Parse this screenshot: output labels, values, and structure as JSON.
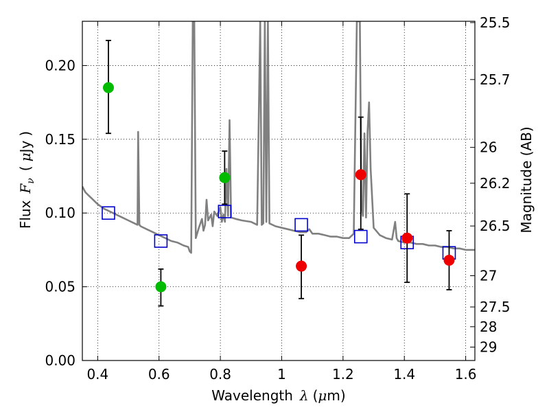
{
  "chart_data": {
    "type": "scatter",
    "xlabel": "Wavelength  λ (μm)",
    "ylabel": "Flux  F_ν  ( μJy )",
    "ylabel_parts": {
      "prefix": "Flux",
      "symbol": "F",
      "subscript": "ν",
      "unit_open": "(",
      "unit_mu": "μ",
      "unit": "Jy",
      "unit_close": ")"
    },
    "xlabel_parts": {
      "prefix": "Wavelength",
      "symbol": "λ",
      "unit_open": "(",
      "unit_mu": "μ",
      "unit": "m)"
    },
    "ylabel_right": "Magnitude (AB)",
    "xlim": [
      0.35,
      1.63
    ],
    "ylim": [
      0.0,
      0.23
    ],
    "grid": true,
    "x_ticks": [
      {
        "value": 0.4,
        "label": "0.4"
      },
      {
        "value": 0.6,
        "label": "0.6"
      },
      {
        "value": 0.8,
        "label": "0.8"
      },
      {
        "value": 1.0,
        "label": "1"
      },
      {
        "value": 1.2,
        "label": "1.2"
      },
      {
        "value": 1.4,
        "label": "1.4"
      },
      {
        "value": 1.6,
        "label": "1.6"
      }
    ],
    "y_ticks": [
      {
        "value": 0.0,
        "label": "0.00"
      },
      {
        "value": 0.05,
        "label": "0.05"
      },
      {
        "value": 0.1,
        "label": "0.10"
      },
      {
        "value": 0.15,
        "label": "0.15"
      },
      {
        "value": 0.2,
        "label": "0.20"
      }
    ],
    "right_ticks": [
      {
        "flux": 0.2291,
        "label": "25.5"
      },
      {
        "flux": 0.1905,
        "label": "25.7"
      },
      {
        "flux": 0.1445,
        "label": "26"
      },
      {
        "flux": 0.1202,
        "label": "26.2"
      },
      {
        "flux": 0.0912,
        "label": "26.5"
      },
      {
        "flux": 0.0575,
        "label": "27"
      },
      {
        "flux": 0.0363,
        "label": "27.5"
      },
      {
        "flux": 0.0229,
        "label": "28"
      },
      {
        "flux": 0.0091,
        "label": "29"
      }
    ],
    "series": [
      {
        "kind": "line",
        "color": "#808080",
        "points": [
          [
            0.35,
            0.118
          ],
          [
            0.36,
            0.114
          ],
          [
            0.37,
            0.112
          ],
          [
            0.38,
            0.11
          ],
          [
            0.4,
            0.106
          ],
          [
            0.42,
            0.103
          ],
          [
            0.44,
            0.101
          ],
          [
            0.46,
            0.099
          ],
          [
            0.48,
            0.097
          ],
          [
            0.5,
            0.095
          ],
          [
            0.52,
            0.093
          ],
          [
            0.53,
            0.092
          ],
          [
            0.532,
            0.155
          ],
          [
            0.536,
            0.092
          ],
          [
            0.54,
            0.091
          ],
          [
            0.56,
            0.089
          ],
          [
            0.58,
            0.087
          ],
          [
            0.6,
            0.085
          ],
          [
            0.62,
            0.083
          ],
          [
            0.64,
            0.081
          ],
          [
            0.66,
            0.08
          ],
          [
            0.68,
            0.078
          ],
          [
            0.695,
            0.077
          ],
          [
            0.7,
            0.074
          ],
          [
            0.705,
            0.073
          ],
          [
            0.71,
            0.23
          ],
          [
            0.715,
            0.23
          ],
          [
            0.72,
            0.083
          ],
          [
            0.73,
            0.09
          ],
          [
            0.74,
            0.096
          ],
          [
            0.745,
            0.088
          ],
          [
            0.75,
            0.092
          ],
          [
            0.755,
            0.109
          ],
          [
            0.76,
            0.095
          ],
          [
            0.77,
            0.099
          ],
          [
            0.775,
            0.091
          ],
          [
            0.78,
            0.101
          ],
          [
            0.79,
            0.098
          ],
          [
            0.8,
            0.104
          ],
          [
            0.805,
            0.094
          ],
          [
            0.81,
            0.099
          ],
          [
            0.815,
            0.094
          ],
          [
            0.82,
            0.13
          ],
          [
            0.825,
            0.098
          ],
          [
            0.83,
            0.163
          ],
          [
            0.835,
            0.097
          ],
          [
            0.85,
            0.096
          ],
          [
            0.87,
            0.095
          ],
          [
            0.9,
            0.094
          ],
          [
            0.92,
            0.092
          ],
          [
            0.93,
            0.23
          ],
          [
            0.935,
            0.092
          ],
          [
            0.94,
            0.093
          ],
          [
            0.945,
            0.23
          ],
          [
            0.95,
            0.094
          ],
          [
            0.955,
            0.23
          ],
          [
            0.96,
            0.093
          ],
          [
            0.98,
            0.091
          ],
          [
            1.0,
            0.09
          ],
          [
            1.02,
            0.089
          ],
          [
            1.04,
            0.088
          ],
          [
            1.06,
            0.087
          ],
          [
            1.08,
            0.087
          ],
          [
            1.09,
            0.089
          ],
          [
            1.1,
            0.086
          ],
          [
            1.12,
            0.086
          ],
          [
            1.14,
            0.085
          ],
          [
            1.16,
            0.084
          ],
          [
            1.18,
            0.084
          ],
          [
            1.2,
            0.083
          ],
          [
            1.22,
            0.083
          ],
          [
            1.235,
            0.086
          ],
          [
            1.245,
            0.23
          ],
          [
            1.255,
            0.23
          ],
          [
            1.26,
            0.105
          ],
          [
            1.265,
            0.098
          ],
          [
            1.27,
            0.154
          ],
          [
            1.275,
            0.097
          ],
          [
            1.28,
            0.155
          ],
          [
            1.285,
            0.175
          ],
          [
            1.29,
            0.13
          ],
          [
            1.3,
            0.09
          ],
          [
            1.32,
            0.085
          ],
          [
            1.34,
            0.083
          ],
          [
            1.36,
            0.082
          ],
          [
            1.37,
            0.094
          ],
          [
            1.375,
            0.083
          ],
          [
            1.38,
            0.081
          ],
          [
            1.4,
            0.08
          ],
          [
            1.42,
            0.08
          ],
          [
            1.44,
            0.079
          ],
          [
            1.46,
            0.079
          ],
          [
            1.48,
            0.078
          ],
          [
            1.5,
            0.078
          ],
          [
            1.52,
            0.077
          ],
          [
            1.54,
            0.077
          ],
          [
            1.56,
            0.076
          ],
          [
            1.58,
            0.076
          ],
          [
            1.6,
            0.075
          ],
          [
            1.62,
            0.075
          ],
          [
            1.63,
            0.075
          ]
        ]
      },
      {
        "kind": "scatter-errorbar",
        "marker": "circle",
        "color": "#00bb00",
        "points": [
          {
            "x": 0.435,
            "y": 0.185,
            "lo": 0.154,
            "hi": 0.217
          },
          {
            "x": 0.606,
            "y": 0.05,
            "lo": 0.037,
            "hi": 0.062
          },
          {
            "x": 0.814,
            "y": 0.124,
            "lo": 0.106,
            "hi": 0.142
          }
        ]
      },
      {
        "kind": "scatter-errorbar",
        "marker": "circle",
        "color": "#ee0000",
        "points": [
          {
            "x": 1.064,
            "y": 0.064,
            "lo": 0.042,
            "hi": 0.085
          },
          {
            "x": 1.258,
            "y": 0.126,
            "lo": 0.089,
            "hi": 0.165
          },
          {
            "x": 1.409,
            "y": 0.083,
            "lo": 0.053,
            "hi": 0.113
          },
          {
            "x": 1.546,
            "y": 0.068,
            "lo": 0.048,
            "hi": 0.088
          }
        ]
      },
      {
        "kind": "scatter",
        "marker": "open-square",
        "color": "#0000cc",
        "points": [
          {
            "x": 0.435,
            "y": 0.1
          },
          {
            "x": 0.606,
            "y": 0.081
          },
          {
            "x": 0.814,
            "y": 0.101
          },
          {
            "x": 1.064,
            "y": 0.092
          },
          {
            "x": 1.258,
            "y": 0.084
          },
          {
            "x": 1.409,
            "y": 0.08
          },
          {
            "x": 1.546,
            "y": 0.073
          }
        ]
      }
    ]
  }
}
